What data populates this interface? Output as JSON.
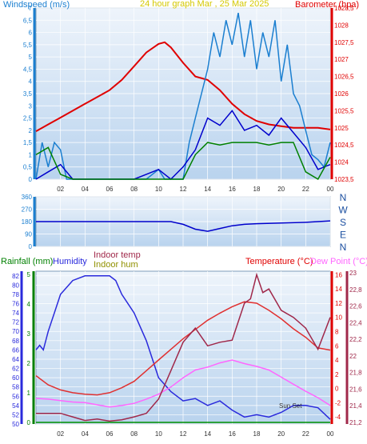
{
  "chart_data": [
    {
      "type": "line",
      "panel": "top",
      "title": "24 hour graph Mar , 25 Mar 2025",
      "left_axis_label": "Windspeed (m/s)",
      "right_axis_label": "Barometer (hpa)",
      "ylim_left": [
        0,
        7
      ],
      "ylim_right": [
        1023.5,
        1028.5
      ],
      "left_ticks": [
        "0",
        "0,5",
        "1",
        "1,5",
        "2",
        "2,5",
        "3",
        "3,5",
        "4",
        "4,5",
        "5",
        "5,5",
        "6",
        "6,5",
        "7"
      ],
      "right_ticks": [
        "1023,5",
        "1024",
        "1024,5",
        "1025",
        "1025,5",
        "1026",
        "1026,5",
        "1027",
        "1027,5",
        "1028",
        "1028,5"
      ],
      "x_ticks": [
        "02",
        "04",
        "06",
        "08",
        "10",
        "12",
        "14",
        "16",
        "18",
        "20",
        "22",
        "00"
      ],
      "xlim": [
        0,
        24
      ],
      "grid": true,
      "series": [
        {
          "name": "Barometer",
          "axis": "right",
          "color": "#e00000",
          "x": [
            0,
            1,
            2,
            3,
            4,
            5,
            6,
            7,
            8,
            9,
            10,
            10.5,
            11,
            12,
            13,
            14,
            15,
            16,
            17,
            18,
            19,
            20,
            21,
            22,
            23,
            24
          ],
          "y": [
            1024.9,
            1025.1,
            1025.3,
            1025.5,
            1025.7,
            1025.9,
            1026.1,
            1026.4,
            1026.8,
            1027.2,
            1027.45,
            1027.5,
            1027.35,
            1026.9,
            1026.5,
            1026.4,
            1026.1,
            1025.7,
            1025.4,
            1025.2,
            1025.1,
            1025.05,
            1025.0,
            1025.0,
            1025.0,
            1024.95
          ]
        },
        {
          "name": "Wind Gust",
          "axis": "left",
          "color": "#1b7fd0",
          "x": [
            0,
            0.5,
            1,
            1.5,
            2,
            2.5,
            3,
            4,
            5,
            6,
            7,
            8,
            9,
            10,
            10.5,
            11,
            12,
            12.5,
            13,
            13.5,
            14,
            14.5,
            15,
            15.5,
            16,
            16.5,
            17,
            17.5,
            18,
            18.5,
            19,
            19.5,
            20,
            20.5,
            21,
            21.5,
            22,
            22.5,
            23,
            23.5,
            24
          ],
          "y": [
            0,
            1.5,
            0.5,
            1.5,
            1.2,
            0,
            0,
            0,
            0,
            0,
            0,
            0,
            0,
            0.4,
            0,
            0,
            0,
            1.5,
            2.5,
            3.5,
            4.5,
            6,
            5,
            6.5,
            5.5,
            6.8,
            5,
            6.5,
            4.5,
            6,
            5,
            6.5,
            4,
            5.5,
            3.5,
            3,
            2,
            1,
            0.8,
            0.5,
            1.5
          ]
        },
        {
          "name": "Average Wind",
          "axis": "left",
          "color": "#0000cc",
          "x": [
            0,
            1,
            2,
            3,
            4,
            6,
            8,
            9,
            10,
            11,
            12,
            13,
            14,
            15,
            16,
            17,
            18,
            19,
            20,
            21,
            22,
            23,
            24
          ],
          "y": [
            0,
            0.3,
            0.6,
            0,
            0,
            0,
            0,
            0.2,
            0.4,
            0,
            0.5,
            1.2,
            2.5,
            2.2,
            2.8,
            2,
            2.2,
            1.8,
            2.5,
            1.9,
            1.3,
            0.4,
            0.6
          ]
        },
        {
          "name": "Wind Run",
          "axis": "left",
          "color": "#008000",
          "x": [
            0,
            1,
            2,
            3,
            4,
            12,
            13,
            14,
            15,
            16,
            17,
            18,
            19,
            20,
            21,
            22,
            23,
            24
          ],
          "y": [
            1,
            1.3,
            0.2,
            0,
            0,
            0,
            1,
            1.5,
            1.4,
            1.5,
            1.5,
            1.5,
            1.4,
            1.5,
            1.5,
            0.3,
            0,
            0.9
          ]
        }
      ]
    },
    {
      "type": "line",
      "panel": "middle",
      "y_ticks": [
        "0",
        "90",
        "180",
        "270",
        "360"
      ],
      "compass_labels": [
        "N",
        "W",
        "S",
        "E",
        "N"
      ],
      "ylim": [
        0,
        360
      ],
      "xlim": [
        0,
        24
      ],
      "grid": true,
      "series": [
        {
          "name": "Wind Direction",
          "color": "#0000cc",
          "x": [
            0,
            10,
            11,
            12,
            13,
            14,
            15,
            16,
            17,
            18,
            20,
            22,
            24
          ],
          "y": [
            180,
            180,
            180,
            160,
            125,
            110,
            130,
            150,
            160,
            165,
            170,
            175,
            185
          ]
        }
      ]
    },
    {
      "type": "line",
      "panel": "bottom",
      "labels": {
        "rainfall": "Rainfall (mm)",
        "humidity": "Humidity",
        "indoor_temp": "Indoor temp",
        "indoor_hum": "Indoor hum",
        "temperature": "Temperature (°C)",
        "dew_point": "Dew Point (°C)",
        "annotation": "Sun Set"
      },
      "humidity_ticks": [
        "50",
        "52",
        "54",
        "56",
        "58",
        "60",
        "62",
        "64",
        "66",
        "68",
        "70",
        "72",
        "74",
        "76",
        "78",
        "80",
        "82"
      ],
      "rain_ticks": [
        "0",
        "1",
        "2",
        "3",
        "4",
        "5"
      ],
      "temp_ticks": [
        "-4",
        "-2",
        "0",
        "2",
        "4",
        "6",
        "8",
        "10",
        "12",
        "14",
        "16"
      ],
      "indoor_ticks": [
        "21,2",
        "21,4",
        "21,6",
        "21,8",
        "22",
        "22,2",
        "22,4",
        "22,6",
        "22,8",
        "23"
      ],
      "x_ticks": [
        "02",
        "04",
        "06",
        "08",
        "10",
        "12",
        "14",
        "16",
        "18",
        "20",
        "22",
        "00"
      ],
      "ylim_humidity": [
        50,
        83
      ],
      "ylim_temperature": [
        -5,
        16.5
      ],
      "xlim": [
        0,
        24
      ],
      "grid": true,
      "series": [
        {
          "name": "Humidity",
          "axis": "humidity",
          "color": "#2a2adc",
          "x": [
            0,
            0.3,
            0.6,
            1,
            1.5,
            2,
            3,
            4,
            5,
            6,
            6.5,
            7,
            8,
            9,
            10,
            11,
            12,
            13,
            14,
            15,
            16,
            17,
            18,
            19,
            20,
            21,
            22,
            23,
            24
          ],
          "y": [
            66,
            67,
            66,
            70,
            74,
            78,
            81,
            82,
            82,
            82,
            81,
            78,
            74,
            68,
            60,
            57,
            55,
            55.5,
            54,
            55,
            53,
            51.5,
            52,
            51.5,
            52.5,
            54,
            54,
            53.5,
            51
          ]
        },
        {
          "name": "Temperature",
          "axis": "temperature",
          "color": "#e03030",
          "x": [
            0,
            1,
            2,
            3,
            4,
            5,
            6,
            7,
            8,
            9,
            10,
            11,
            12,
            13,
            14,
            15,
            16,
            17,
            18,
            19,
            20,
            21,
            22,
            23,
            24
          ],
          "y": [
            1.8,
            0.5,
            -0.2,
            -0.6,
            -0.8,
            -0.9,
            -0.6,
            0.1,
            1,
            2.5,
            4,
            5.5,
            7,
            8.3,
            9.6,
            10.6,
            11.5,
            12.2,
            12,
            11,
            9.8,
            8.4,
            7.2,
            5.7,
            5.4
          ]
        },
        {
          "name": "Dew Point",
          "axis": "temperature",
          "color": "#ff66ff",
          "x": [
            0,
            1,
            2,
            3,
            4,
            5,
            6,
            7,
            8,
            9,
            10,
            11,
            12,
            13,
            14,
            15,
            16,
            17,
            18,
            19,
            20,
            21,
            22,
            23,
            24
          ],
          "y": [
            -1.4,
            -1.5,
            -1.7,
            -1.9,
            -2,
            -2.3,
            -2.6,
            -2.4,
            -2.1,
            -1.5,
            -0.8,
            0.2,
            1.5,
            2.6,
            3,
            3.6,
            4,
            3.5,
            3.1,
            2.6,
            1.6,
            0.6,
            -0.4,
            -1.3,
            -2.4
          ]
        },
        {
          "name": "Indoor temp",
          "axis": "temperature",
          "color": "#a0284a",
          "x": [
            0,
            2,
            3,
            4,
            5,
            6,
            7,
            8,
            9,
            10,
            11,
            12,
            13,
            14,
            15,
            16,
            17,
            17.5,
            18,
            18.5,
            19,
            20,
            21,
            22,
            23,
            24
          ],
          "y": [
            -3.5,
            -3.5,
            -4,
            -4.5,
            -4.3,
            -4.6,
            -4.4,
            -4,
            -3.5,
            -1.5,
            2.5,
            6.5,
            8.5,
            6,
            6.5,
            6.8,
            12,
            12.6,
            16,
            13.5,
            14,
            11,
            10,
            8.5,
            5.5,
            10
          ]
        },
        {
          "name": "Rainfall",
          "axis": "rain",
          "color": "#009000",
          "x": [
            0,
            24
          ],
          "y": [
            0,
            0
          ]
        }
      ]
    }
  ]
}
